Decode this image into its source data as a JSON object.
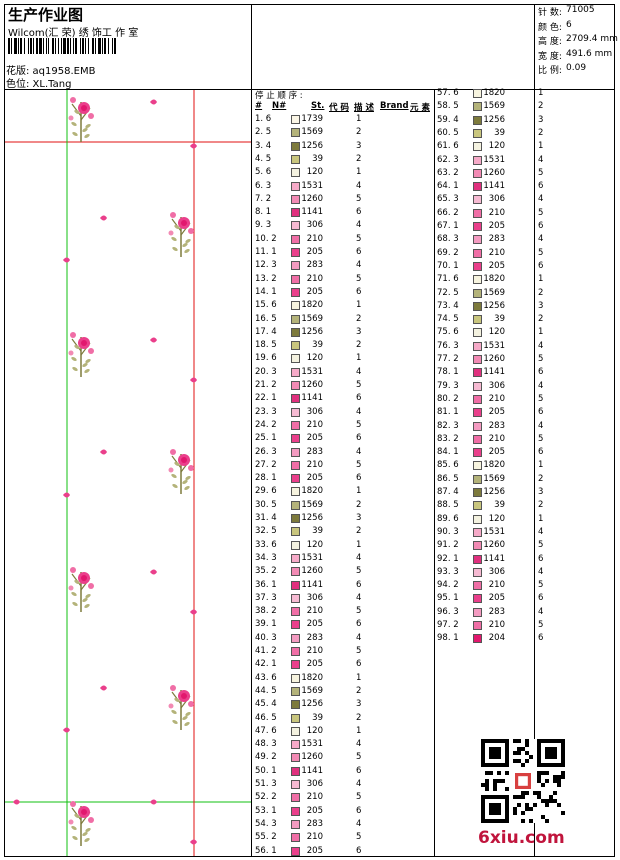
{
  "header": {
    "title": "生产作业图",
    "studio": "Wilcom(汇 荣) 绣 饰工 作 室",
    "design_label": "花版: aq1958.EMB",
    "color_label": "色位: XL.Tang"
  },
  "specs": [
    {
      "label": "针 数:",
      "value": "71005"
    },
    {
      "label": "颜 色:",
      "value": "6"
    },
    {
      "label": "高 度:",
      "value": "2709.4 mm"
    },
    {
      "label": "宽 度:",
      "value": "491.6 mm"
    },
    {
      "label": "比 例:",
      "value": "0.09"
    }
  ],
  "table_header": {
    "stop_title": "停 止 顺 序 :",
    "hash": "#",
    "n_hash": "N#",
    "st": "St.",
    "code": "代 码",
    "desc": "描 述",
    "brand": "Brand",
    "element": "元 素"
  },
  "colors": {
    "1739": "#fbf6e6",
    "1569": "#b4b37a",
    "1256": "#7d7a3c",
    "39": "#c9c67e",
    "120": "#f4f2e0",
    "1531": "#f6aac8",
    "1260": "#f28ab4",
    "1141": "#e0307e",
    "306": "#f6bad2",
    "210": "#f06ea6",
    "205": "#ea3f8b",
    "283": "#f49bc1",
    "1820": "#f7f4df",
    "204": "#e2186e"
  },
  "col1": [
    {
      "s": "1.",
      "n": "6",
      "code": "1739",
      "cn": "1"
    },
    {
      "s": "2.",
      "n": "5",
      "code": "1569",
      "cn": "2"
    },
    {
      "s": "3.",
      "n": "4",
      "code": "1256",
      "cn": "3"
    },
    {
      "s": "4.",
      "n": "5",
      "code": "39",
      "cn": "2"
    },
    {
      "s": "5.",
      "n": "6",
      "code": "120",
      "cn": "1"
    },
    {
      "s": "6.",
      "n": "3",
      "code": "1531",
      "cn": "4"
    },
    {
      "s": "7.",
      "n": "2",
      "code": "1260",
      "cn": "5"
    },
    {
      "s": "8.",
      "n": "1",
      "code": "1141",
      "cn": "6"
    },
    {
      "s": "9.",
      "n": "3",
      "code": "306",
      "cn": "4"
    },
    {
      "s": "10.",
      "n": "2",
      "code": "210",
      "cn": "5"
    },
    {
      "s": "11.",
      "n": "1",
      "code": "205",
      "cn": "6"
    },
    {
      "s": "12.",
      "n": "3",
      "code": "283",
      "cn": "4"
    },
    {
      "s": "13.",
      "n": "2",
      "code": "210",
      "cn": "5"
    },
    {
      "s": "14.",
      "n": "1",
      "code": "205",
      "cn": "6"
    },
    {
      "s": "15.",
      "n": "6",
      "code": "1820",
      "cn": "1"
    },
    {
      "s": "16.",
      "n": "5",
      "code": "1569",
      "cn": "2"
    },
    {
      "s": "17.",
      "n": "4",
      "code": "1256",
      "cn": "3"
    },
    {
      "s": "18.",
      "n": "5",
      "code": "39",
      "cn": "2"
    },
    {
      "s": "19.",
      "n": "6",
      "code": "120",
      "cn": "1"
    },
    {
      "s": "20.",
      "n": "3",
      "code": "1531",
      "cn": "4"
    },
    {
      "s": "21.",
      "n": "2",
      "code": "1260",
      "cn": "5"
    },
    {
      "s": "22.",
      "n": "1",
      "code": "1141",
      "cn": "6"
    },
    {
      "s": "23.",
      "n": "3",
      "code": "306",
      "cn": "4"
    },
    {
      "s": "24.",
      "n": "2",
      "code": "210",
      "cn": "5"
    },
    {
      "s": "25.",
      "n": "1",
      "code": "205",
      "cn": "6"
    },
    {
      "s": "26.",
      "n": "3",
      "code": "283",
      "cn": "4"
    },
    {
      "s": "27.",
      "n": "2",
      "code": "210",
      "cn": "5"
    },
    {
      "s": "28.",
      "n": "1",
      "code": "205",
      "cn": "6"
    },
    {
      "s": "29.",
      "n": "6",
      "code": "1820",
      "cn": "1"
    },
    {
      "s": "30.",
      "n": "5",
      "code": "1569",
      "cn": "2"
    },
    {
      "s": "31.",
      "n": "4",
      "code": "1256",
      "cn": "3"
    },
    {
      "s": "32.",
      "n": "5",
      "code": "39",
      "cn": "2"
    },
    {
      "s": "33.",
      "n": "6",
      "code": "120",
      "cn": "1"
    },
    {
      "s": "34.",
      "n": "3",
      "code": "1531",
      "cn": "4"
    },
    {
      "s": "35.",
      "n": "2",
      "code": "1260",
      "cn": "5"
    },
    {
      "s": "36.",
      "n": "1",
      "code": "1141",
      "cn": "6"
    },
    {
      "s": "37.",
      "n": "3",
      "code": "306",
      "cn": "4"
    },
    {
      "s": "38.",
      "n": "2",
      "code": "210",
      "cn": "5"
    },
    {
      "s": "39.",
      "n": "1",
      "code": "205",
      "cn": "6"
    },
    {
      "s": "40.",
      "n": "3",
      "code": "283",
      "cn": "4"
    },
    {
      "s": "41.",
      "n": "2",
      "code": "210",
      "cn": "5"
    },
    {
      "s": "42.",
      "n": "1",
      "code": "205",
      "cn": "6"
    },
    {
      "s": "43.",
      "n": "6",
      "code": "1820",
      "cn": "1"
    },
    {
      "s": "44.",
      "n": "5",
      "code": "1569",
      "cn": "2"
    },
    {
      "s": "45.",
      "n": "4",
      "code": "1256",
      "cn": "3"
    },
    {
      "s": "46.",
      "n": "5",
      "code": "39",
      "cn": "2"
    },
    {
      "s": "47.",
      "n": "6",
      "code": "120",
      "cn": "1"
    },
    {
      "s": "48.",
      "n": "3",
      "code": "1531",
      "cn": "4"
    },
    {
      "s": "49.",
      "n": "2",
      "code": "1260",
      "cn": "5"
    },
    {
      "s": "50.",
      "n": "1",
      "code": "1141",
      "cn": "6"
    },
    {
      "s": "51.",
      "n": "3",
      "code": "306",
      "cn": "4"
    },
    {
      "s": "52.",
      "n": "2",
      "code": "210",
      "cn": "5"
    },
    {
      "s": "53.",
      "n": "1",
      "code": "205",
      "cn": "6"
    },
    {
      "s": "54.",
      "n": "3",
      "code": "283",
      "cn": "4"
    },
    {
      "s": "55.",
      "n": "2",
      "code": "210",
      "cn": "5"
    },
    {
      "s": "56.",
      "n": "1",
      "code": "205",
      "cn": "6"
    }
  ],
  "col2": [
    {
      "s": "57.",
      "n": "6",
      "code": "1820",
      "cn": "1"
    },
    {
      "s": "58.",
      "n": "5",
      "code": "1569",
      "cn": "2"
    },
    {
      "s": "59.",
      "n": "4",
      "code": "1256",
      "cn": "3"
    },
    {
      "s": "60.",
      "n": "5",
      "code": "39",
      "cn": "2"
    },
    {
      "s": "61.",
      "n": "6",
      "code": "120",
      "cn": "1"
    },
    {
      "s": "62.",
      "n": "3",
      "code": "1531",
      "cn": "4"
    },
    {
      "s": "63.",
      "n": "2",
      "code": "1260",
      "cn": "5"
    },
    {
      "s": "64.",
      "n": "1",
      "code": "1141",
      "cn": "6"
    },
    {
      "s": "65.",
      "n": "3",
      "code": "306",
      "cn": "4"
    },
    {
      "s": "66.",
      "n": "2",
      "code": "210",
      "cn": "5"
    },
    {
      "s": "67.",
      "n": "1",
      "code": "205",
      "cn": "6"
    },
    {
      "s": "68.",
      "n": "3",
      "code": "283",
      "cn": "4"
    },
    {
      "s": "69.",
      "n": "2",
      "code": "210",
      "cn": "5"
    },
    {
      "s": "70.",
      "n": "1",
      "code": "205",
      "cn": "6"
    },
    {
      "s": "71.",
      "n": "6",
      "code": "1820",
      "cn": "1"
    },
    {
      "s": "72.",
      "n": "5",
      "code": "1569",
      "cn": "2"
    },
    {
      "s": "73.",
      "n": "4",
      "code": "1256",
      "cn": "3"
    },
    {
      "s": "74.",
      "n": "5",
      "code": "39",
      "cn": "2"
    },
    {
      "s": "75.",
      "n": "6",
      "code": "120",
      "cn": "1"
    },
    {
      "s": "76.",
      "n": "3",
      "code": "1531",
      "cn": "4"
    },
    {
      "s": "77.",
      "n": "2",
      "code": "1260",
      "cn": "5"
    },
    {
      "s": "78.",
      "n": "1",
      "code": "1141",
      "cn": "6"
    },
    {
      "s": "79.",
      "n": "3",
      "code": "306",
      "cn": "4"
    },
    {
      "s": "80.",
      "n": "2",
      "code": "210",
      "cn": "5"
    },
    {
      "s": "81.",
      "n": "1",
      "code": "205",
      "cn": "6"
    },
    {
      "s": "82.",
      "n": "3",
      "code": "283",
      "cn": "4"
    },
    {
      "s": "83.",
      "n": "2",
      "code": "210",
      "cn": "5"
    },
    {
      "s": "84.",
      "n": "1",
      "code": "205",
      "cn": "6"
    },
    {
      "s": "85.",
      "n": "6",
      "code": "1820",
      "cn": "1"
    },
    {
      "s": "86.",
      "n": "5",
      "code": "1569",
      "cn": "2"
    },
    {
      "s": "87.",
      "n": "4",
      "code": "1256",
      "cn": "3"
    },
    {
      "s": "88.",
      "n": "5",
      "code": "39",
      "cn": "2"
    },
    {
      "s": "89.",
      "n": "6",
      "code": "120",
      "cn": "1"
    },
    {
      "s": "90.",
      "n": "3",
      "code": "1531",
      "cn": "4"
    },
    {
      "s": "91.",
      "n": "2",
      "code": "1260",
      "cn": "5"
    },
    {
      "s": "92.",
      "n": "1",
      "code": "1141",
      "cn": "6"
    },
    {
      "s": "93.",
      "n": "3",
      "code": "306",
      "cn": "4"
    },
    {
      "s": "94.",
      "n": "2",
      "code": "210",
      "cn": "5"
    },
    {
      "s": "95.",
      "n": "1",
      "code": "205",
      "cn": "6"
    },
    {
      "s": "96.",
      "n": "3",
      "code": "283",
      "cn": "4"
    },
    {
      "s": "97.",
      "n": "2",
      "code": "210",
      "cn": "5"
    },
    {
      "s": "98.",
      "n": "1",
      "code": "204",
      "cn": "6"
    }
  ],
  "watermark": "6xiu.com"
}
